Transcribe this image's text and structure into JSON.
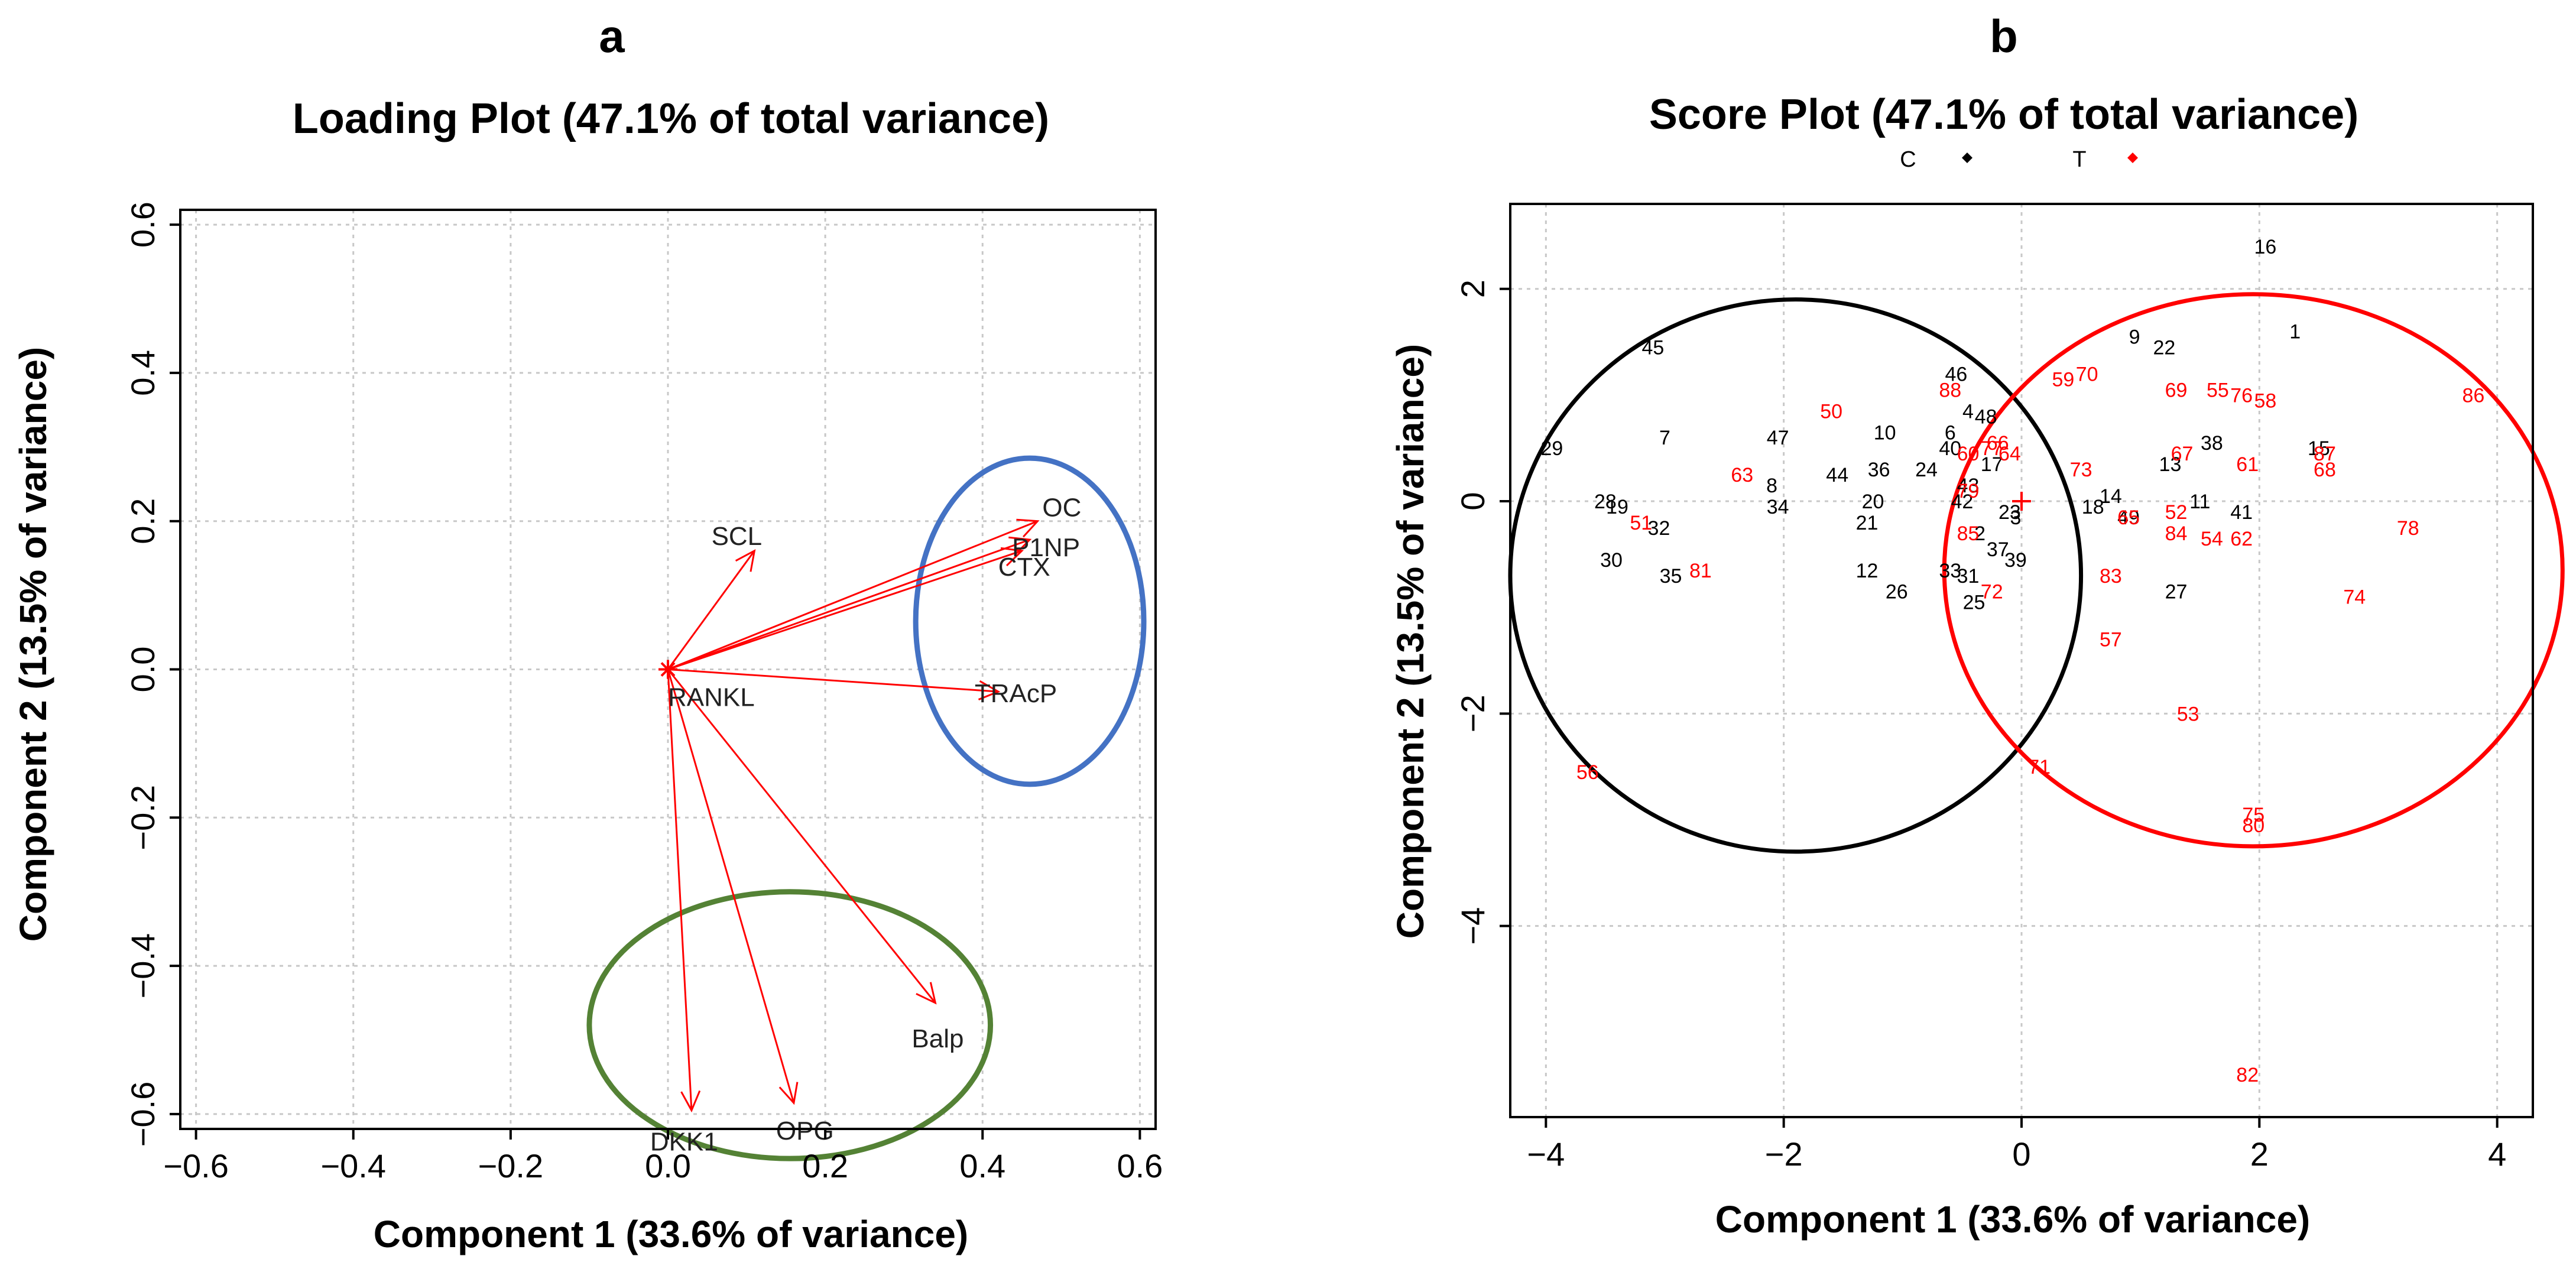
{
  "chart_data": [
    {
      "type": "scatter",
      "panel": "a",
      "title": "Loading Plot (47.1% of total variance)",
      "xlabel": "Component 1 (33.6% of variance)",
      "ylabel": "Component 2 (13.5% of variance)",
      "xlim": [
        -0.62,
        0.62
      ],
      "ylim": [
        -0.62,
        0.62
      ],
      "xticks": [
        -0.6,
        -0.4,
        -0.2,
        0.0,
        0.2,
        0.4,
        0.6
      ],
      "yticks": [
        -0.6,
        -0.4,
        -0.2,
        0.0,
        0.2,
        0.4,
        0.6
      ],
      "xtick_labels": [
        "−0.6",
        "−0.4",
        "−0.2",
        "0.0",
        "0.2",
        "0.4",
        "0.6"
      ],
      "ytick_labels": [
        "−0.6",
        "−0.4",
        "−0.2",
        "0.0",
        "0.2",
        "0.4",
        "0.6"
      ],
      "grid": true,
      "arrow_color": "#ff0000",
      "loadings": [
        {
          "label": "OC",
          "x": 0.47,
          "y": 0.2
        },
        {
          "label": "P1NP",
          "x": 0.46,
          "y": 0.175
        },
        {
          "label": "CTX",
          "x": 0.45,
          "y": 0.16
        },
        {
          "label": "SCL",
          "x": 0.11,
          "y": 0.16
        },
        {
          "label": "TRAcP",
          "x": 0.42,
          "y": -0.03
        },
        {
          "label": "Balp",
          "x": 0.34,
          "y": -0.45
        },
        {
          "label": "OPG",
          "x": 0.16,
          "y": -0.585
        },
        {
          "label": "DKK1",
          "x": 0.03,
          "y": -0.595
        },
        {
          "label": "RANKL",
          "x": 0.0,
          "y": 0.0
        }
      ],
      "ellipses": [
        {
          "name": "blue-cluster",
          "color": "#4472c4",
          "cx": 0.46,
          "cy": 0.065,
          "rx": 0.145,
          "ry": 0.22
        },
        {
          "name": "green-cluster",
          "color": "#548235",
          "cx": 0.155,
          "cy": -0.48,
          "rx": 0.255,
          "ry": 0.18
        }
      ]
    },
    {
      "type": "scatter",
      "panel": "b",
      "title": "Score Plot (47.1% of total variance)",
      "xlabel": "Component 1 (33.6% of variance)",
      "ylabel": "Component 2 (13.5% of variance)",
      "xlim": [
        -4.3,
        4.3
      ],
      "ylim": [
        -5.8,
        2.8
      ],
      "xticks": [
        -4,
        -2,
        0,
        2,
        4
      ],
      "yticks": [
        -4,
        -2,
        0,
        2
      ],
      "xtick_labels": [
        "−4",
        "−2",
        "0",
        "2",
        "4"
      ],
      "ytick_labels": [
        "−4",
        "−2",
        "0",
        "2"
      ],
      "grid": true,
      "legend": [
        {
          "label": "C",
          "color": "#000000"
        },
        {
          "label": "T",
          "color": "#ff0000"
        }
      ],
      "center_marker": {
        "x": 0.0,
        "y": 0.0,
        "color": "#ff0000"
      },
      "series": [
        {
          "name": "C",
          "color": "#000000",
          "points": [
            {
              "label": "1",
              "x": 2.3,
              "y": 1.6
            },
            {
              "label": "2",
              "x": -0.35,
              "y": -0.3
            },
            {
              "label": "3",
              "x": -0.05,
              "y": -0.15
            },
            {
              "label": "4",
              "x": -0.45,
              "y": 0.85
            },
            {
              "label": "6",
              "x": -0.6,
              "y": 0.65
            },
            {
              "label": "7",
              "x": -3.0,
              "y": 0.6
            },
            {
              "label": "8",
              "x": -2.1,
              "y": 0.15
            },
            {
              "label": "9",
              "x": 0.95,
              "y": 1.55
            },
            {
              "label": "10",
              "x": -1.15,
              "y": 0.65
            },
            {
              "label": "11",
              "x": 1.5,
              "y": 0.0
            },
            {
              "label": "12",
              "x": -1.3,
              "y": -0.65
            },
            {
              "label": "13",
              "x": 1.25,
              "y": 0.35
            },
            {
              "label": "14",
              "x": 0.75,
              "y": 0.05
            },
            {
              "label": "15",
              "x": 2.5,
              "y": 0.5
            },
            {
              "label": "16",
              "x": 2.05,
              "y": 2.4
            },
            {
              "label": "17",
              "x": -0.25,
              "y": 0.35
            },
            {
              "label": "18",
              "x": 0.6,
              "y": -0.05
            },
            {
              "label": "19",
              "x": -3.4,
              "y": -0.05
            },
            {
              "label": "20",
              "x": -1.25,
              "y": 0.0
            },
            {
              "label": "21",
              "x": -1.3,
              "y": -0.2
            },
            {
              "label": "22",
              "x": 1.2,
              "y": 1.45
            },
            {
              "label": "23",
              "x": -0.1,
              "y": -0.1
            },
            {
              "label": "24",
              "x": -0.8,
              "y": 0.3
            },
            {
              "label": "25",
              "x": -0.4,
              "y": -0.95
            },
            {
              "label": "26",
              "x": -1.05,
              "y": -0.85
            },
            {
              "label": "27",
              "x": 1.3,
              "y": -0.85
            },
            {
              "label": "28",
              "x": -3.5,
              "y": 0.0
            },
            {
              "label": "29",
              "x": -3.95,
              "y": 0.5
            },
            {
              "label": "30",
              "x": -3.45,
              "y": -0.55
            },
            {
              "label": "31",
              "x": -0.45,
              "y": -0.7
            },
            {
              "label": "32",
              "x": -3.05,
              "y": -0.25
            },
            {
              "label": "33",
              "x": -0.6,
              "y": -0.65
            },
            {
              "label": "34",
              "x": -2.05,
              "y": -0.05
            },
            {
              "label": "35",
              "x": -2.95,
              "y": -0.7
            },
            {
              "label": "36",
              "x": -1.2,
              "y": 0.3
            },
            {
              "label": "37",
              "x": -0.2,
              "y": -0.45
            },
            {
              "label": "38",
              "x": 1.6,
              "y": 0.55
            },
            {
              "label": "39",
              "x": -0.05,
              "y": -0.55
            },
            {
              "label": "40",
              "x": -0.6,
              "y": 0.5
            },
            {
              "label": "41",
              "x": 1.85,
              "y": -0.1
            },
            {
              "label": "42",
              "x": -0.5,
              "y": 0.0
            },
            {
              "label": "43",
              "x": -0.45,
              "y": 0.15
            },
            {
              "label": "44",
              "x": -1.55,
              "y": 0.25
            },
            {
              "label": "45",
              "x": -3.1,
              "y": 1.45
            },
            {
              "label": "46",
              "x": -0.55,
              "y": 1.2
            },
            {
              "label": "47",
              "x": -2.05,
              "y": 0.6
            },
            {
              "label": "48",
              "x": -0.3,
              "y": 0.8
            },
            {
              "label": "49",
              "x": 0.9,
              "y": -0.15
            }
          ]
        },
        {
          "name": "T",
          "color": "#ff0000",
          "points": [
            {
              "label": "50",
              "x": -1.6,
              "y": 0.85
            },
            {
              "label": "51",
              "x": -3.2,
              "y": -0.2
            },
            {
              "label": "52",
              "x": 1.3,
              "y": -0.1
            },
            {
              "label": "53",
              "x": 1.4,
              "y": -2.0
            },
            {
              "label": "54",
              "x": 1.6,
              "y": -0.35
            },
            {
              "label": "55",
              "x": 1.65,
              "y": 1.05
            },
            {
              "label": "56",
              "x": -3.65,
              "y": -2.55
            },
            {
              "label": "57",
              "x": 0.75,
              "y": -1.3
            },
            {
              "label": "58",
              "x": 2.05,
              "y": 0.95
            },
            {
              "label": "59",
              "x": 0.35,
              "y": 1.15
            },
            {
              "label": "60",
              "x": -0.45,
              "y": 0.45
            },
            {
              "label": "61",
              "x": 1.9,
              "y": 0.35
            },
            {
              "label": "62",
              "x": 1.85,
              "y": -0.35
            },
            {
              "label": "63",
              "x": -2.35,
              "y": 0.25
            },
            {
              "label": "64",
              "x": -0.1,
              "y": 0.45
            },
            {
              "label": "65",
              "x": 0.9,
              "y": -0.15
            },
            {
              "label": "66",
              "x": -0.2,
              "y": 0.55
            },
            {
              "label": "67",
              "x": 1.35,
              "y": 0.45
            },
            {
              "label": "68",
              "x": 2.55,
              "y": 0.3
            },
            {
              "label": "69",
              "x": 1.3,
              "y": 1.05
            },
            {
              "label": "70",
              "x": 0.55,
              "y": 1.2
            },
            {
              "label": "71",
              "x": 0.15,
              "y": -2.5
            },
            {
              "label": "72",
              "x": -0.25,
              "y": -0.85
            },
            {
              "label": "73",
              "x": 0.5,
              "y": 0.3
            },
            {
              "label": "74",
              "x": 2.8,
              "y": -0.9
            },
            {
              "label": "75",
              "x": 1.95,
              "y": -2.95
            },
            {
              "label": "76",
              "x": 1.85,
              "y": 1.0
            },
            {
              "label": "77",
              "x": -0.25,
              "y": 0.5
            },
            {
              "label": "78",
              "x": 3.25,
              "y": -0.25
            },
            {
              "label": "79",
              "x": -0.45,
              "y": 0.1
            },
            {
              "label": "80",
              "x": 1.95,
              "y": -3.05
            },
            {
              "label": "81",
              "x": -2.7,
              "y": -0.65
            },
            {
              "label": "82",
              "x": 1.9,
              "y": -5.4
            },
            {
              "label": "83",
              "x": 0.75,
              "y": -0.7
            },
            {
              "label": "84",
              "x": 1.3,
              "y": -0.3
            },
            {
              "label": "85",
              "x": -0.45,
              "y": -0.3
            },
            {
              "label": "86",
              "x": 3.8,
              "y": 1.0
            },
            {
              "label": "87",
              "x": 2.55,
              "y": 0.45
            },
            {
              "label": "88",
              "x": -0.6,
              "y": 1.05
            }
          ]
        }
      ],
      "circles": [
        {
          "name": "C-ellipse",
          "color": "#000000",
          "cx": -1.9,
          "cy": -0.7,
          "rx": 2.4,
          "ry": 2.6
        },
        {
          "name": "T-ellipse",
          "color": "#ff0000",
          "cx": 1.95,
          "cy": -0.65,
          "rx": 2.6,
          "ry": 2.6
        }
      ]
    }
  ]
}
